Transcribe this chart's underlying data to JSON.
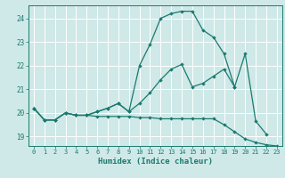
{
  "title": "",
  "xlabel": "Humidex (Indice chaleur)",
  "bg_color": "#cfe8e8",
  "grid_color": "#ffffff",
  "line_color": "#1a7a6e",
  "xlim": [
    -0.5,
    23.5
  ],
  "ylim": [
    18.6,
    24.55
  ],
  "yticks": [
    19,
    20,
    21,
    22,
    23,
    24
  ],
  "xticks": [
    0,
    1,
    2,
    3,
    4,
    5,
    6,
    7,
    8,
    9,
    10,
    11,
    12,
    13,
    14,
    15,
    16,
    17,
    18,
    19,
    20,
    21,
    22,
    23
  ],
  "curve1_x": [
    0,
    1,
    2,
    3,
    4,
    5,
    6,
    7,
    8,
    9,
    10,
    11,
    12,
    13,
    14,
    15,
    16,
    17,
    18,
    19,
    20,
    21,
    22,
    23
  ],
  "curve1_y": [
    20.2,
    19.7,
    19.7,
    20.0,
    19.9,
    19.9,
    19.85,
    19.85,
    19.85,
    19.85,
    19.8,
    19.8,
    19.75,
    19.75,
    19.75,
    19.75,
    19.75,
    19.75,
    19.5,
    19.2,
    18.9,
    18.75,
    18.65,
    18.6
  ],
  "curve2_x": [
    0,
    1,
    2,
    3,
    4,
    5,
    6,
    7,
    8,
    9,
    10,
    11,
    12,
    13,
    14,
    15,
    16,
    17,
    18,
    19,
    20,
    21,
    22
  ],
  "curve2_y": [
    20.2,
    19.7,
    19.7,
    20.0,
    19.9,
    19.9,
    20.05,
    20.2,
    20.4,
    20.05,
    20.4,
    20.85,
    21.4,
    21.85,
    22.05,
    21.1,
    21.25,
    21.55,
    21.85,
    21.1,
    22.5,
    19.65,
    19.1
  ],
  "curve3_x": [
    0,
    1,
    2,
    3,
    4,
    5,
    6,
    7,
    8,
    9,
    10,
    11,
    12,
    13,
    14,
    15,
    16,
    17,
    18,
    19
  ],
  "curve3_y": [
    20.2,
    19.7,
    19.7,
    20.0,
    19.9,
    19.9,
    20.05,
    20.2,
    20.4,
    20.05,
    22.0,
    22.9,
    24.0,
    24.2,
    24.3,
    24.3,
    23.5,
    23.2,
    22.5,
    21.1
  ]
}
